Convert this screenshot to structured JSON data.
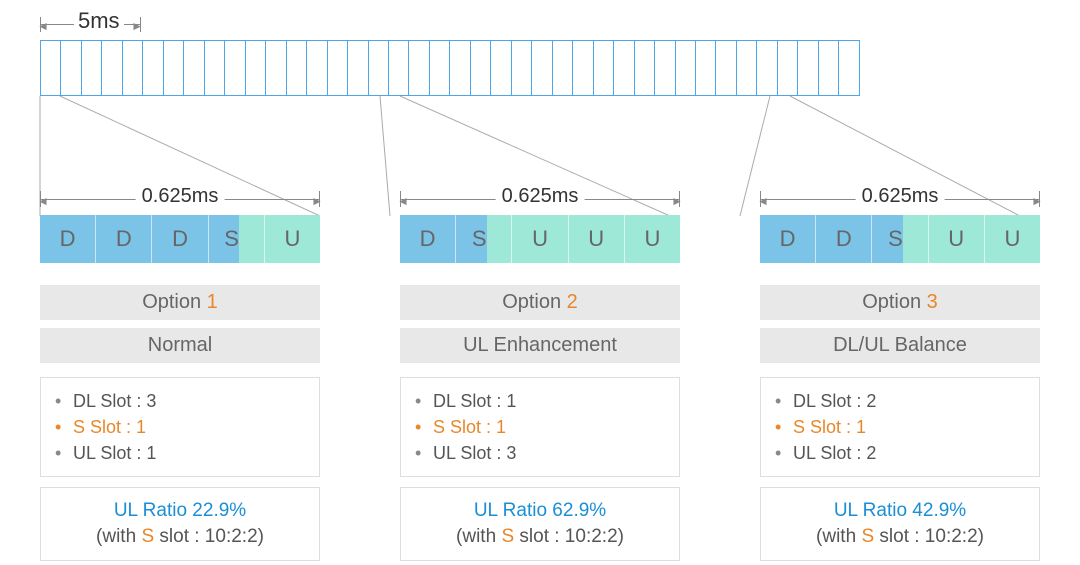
{
  "colors": {
    "frame_border": "#4aa8e8",
    "D": "#7cc3e8",
    "S_left": "#7cc3e8",
    "S_right": "#9ee8d8",
    "U": "#9ee8d8",
    "accent_orange": "#e8872a",
    "ratio_blue": "#1a8fd6",
    "label_bg": "#e8e8e8",
    "box_border": "#dddddd"
  },
  "frame": {
    "total_slots": 40,
    "top_dim_label": "5ms",
    "top_dim_slots": 5
  },
  "sub_dim_label": "0.625ms",
  "slot_labels": {
    "D": "D",
    "S": "S",
    "U": "U"
  },
  "options": [
    {
      "title_prefix": "Option ",
      "title_num": "1",
      "subtitle": "Normal",
      "slots": [
        "D",
        "D",
        "D",
        "S",
        "U"
      ],
      "details": {
        "dl": "DL Slot : 3",
        "s": "S Slot : 1",
        "ul": "UL Slot : 1"
      },
      "ratio_main": "UL Ratio 22.9%",
      "ratio_sub_pre": "(with ",
      "ratio_sub_s": "S",
      "ratio_sub_post": " slot : 10:2:2)"
    },
    {
      "title_prefix": "Option ",
      "title_num": "2",
      "subtitle": "UL Enhancement",
      "slots": [
        "D",
        "S",
        "U",
        "U",
        "U"
      ],
      "details": {
        "dl": "DL Slot : 1",
        "s": "S Slot : 1",
        "ul": "UL Slot : 3"
      },
      "ratio_main": "UL Ratio 62.9%",
      "ratio_sub_pre": "(with ",
      "ratio_sub_s": "S",
      "ratio_sub_post": " slot : 10:2:2)"
    },
    {
      "title_prefix": "Option ",
      "title_num": "3",
      "subtitle": "DL/UL Balance",
      "slots": [
        "D",
        "D",
        "S",
        "U",
        "U"
      ],
      "details": {
        "dl": "DL Slot : 2",
        "s": "S Slot : 1",
        "ul": "UL Slot : 2"
      },
      "ratio_main": "UL Ratio 42.9%",
      "ratio_sub_pre": "(with ",
      "ratio_sub_s": "S",
      "ratio_sub_post": " slot : 10:2:2)"
    }
  ]
}
